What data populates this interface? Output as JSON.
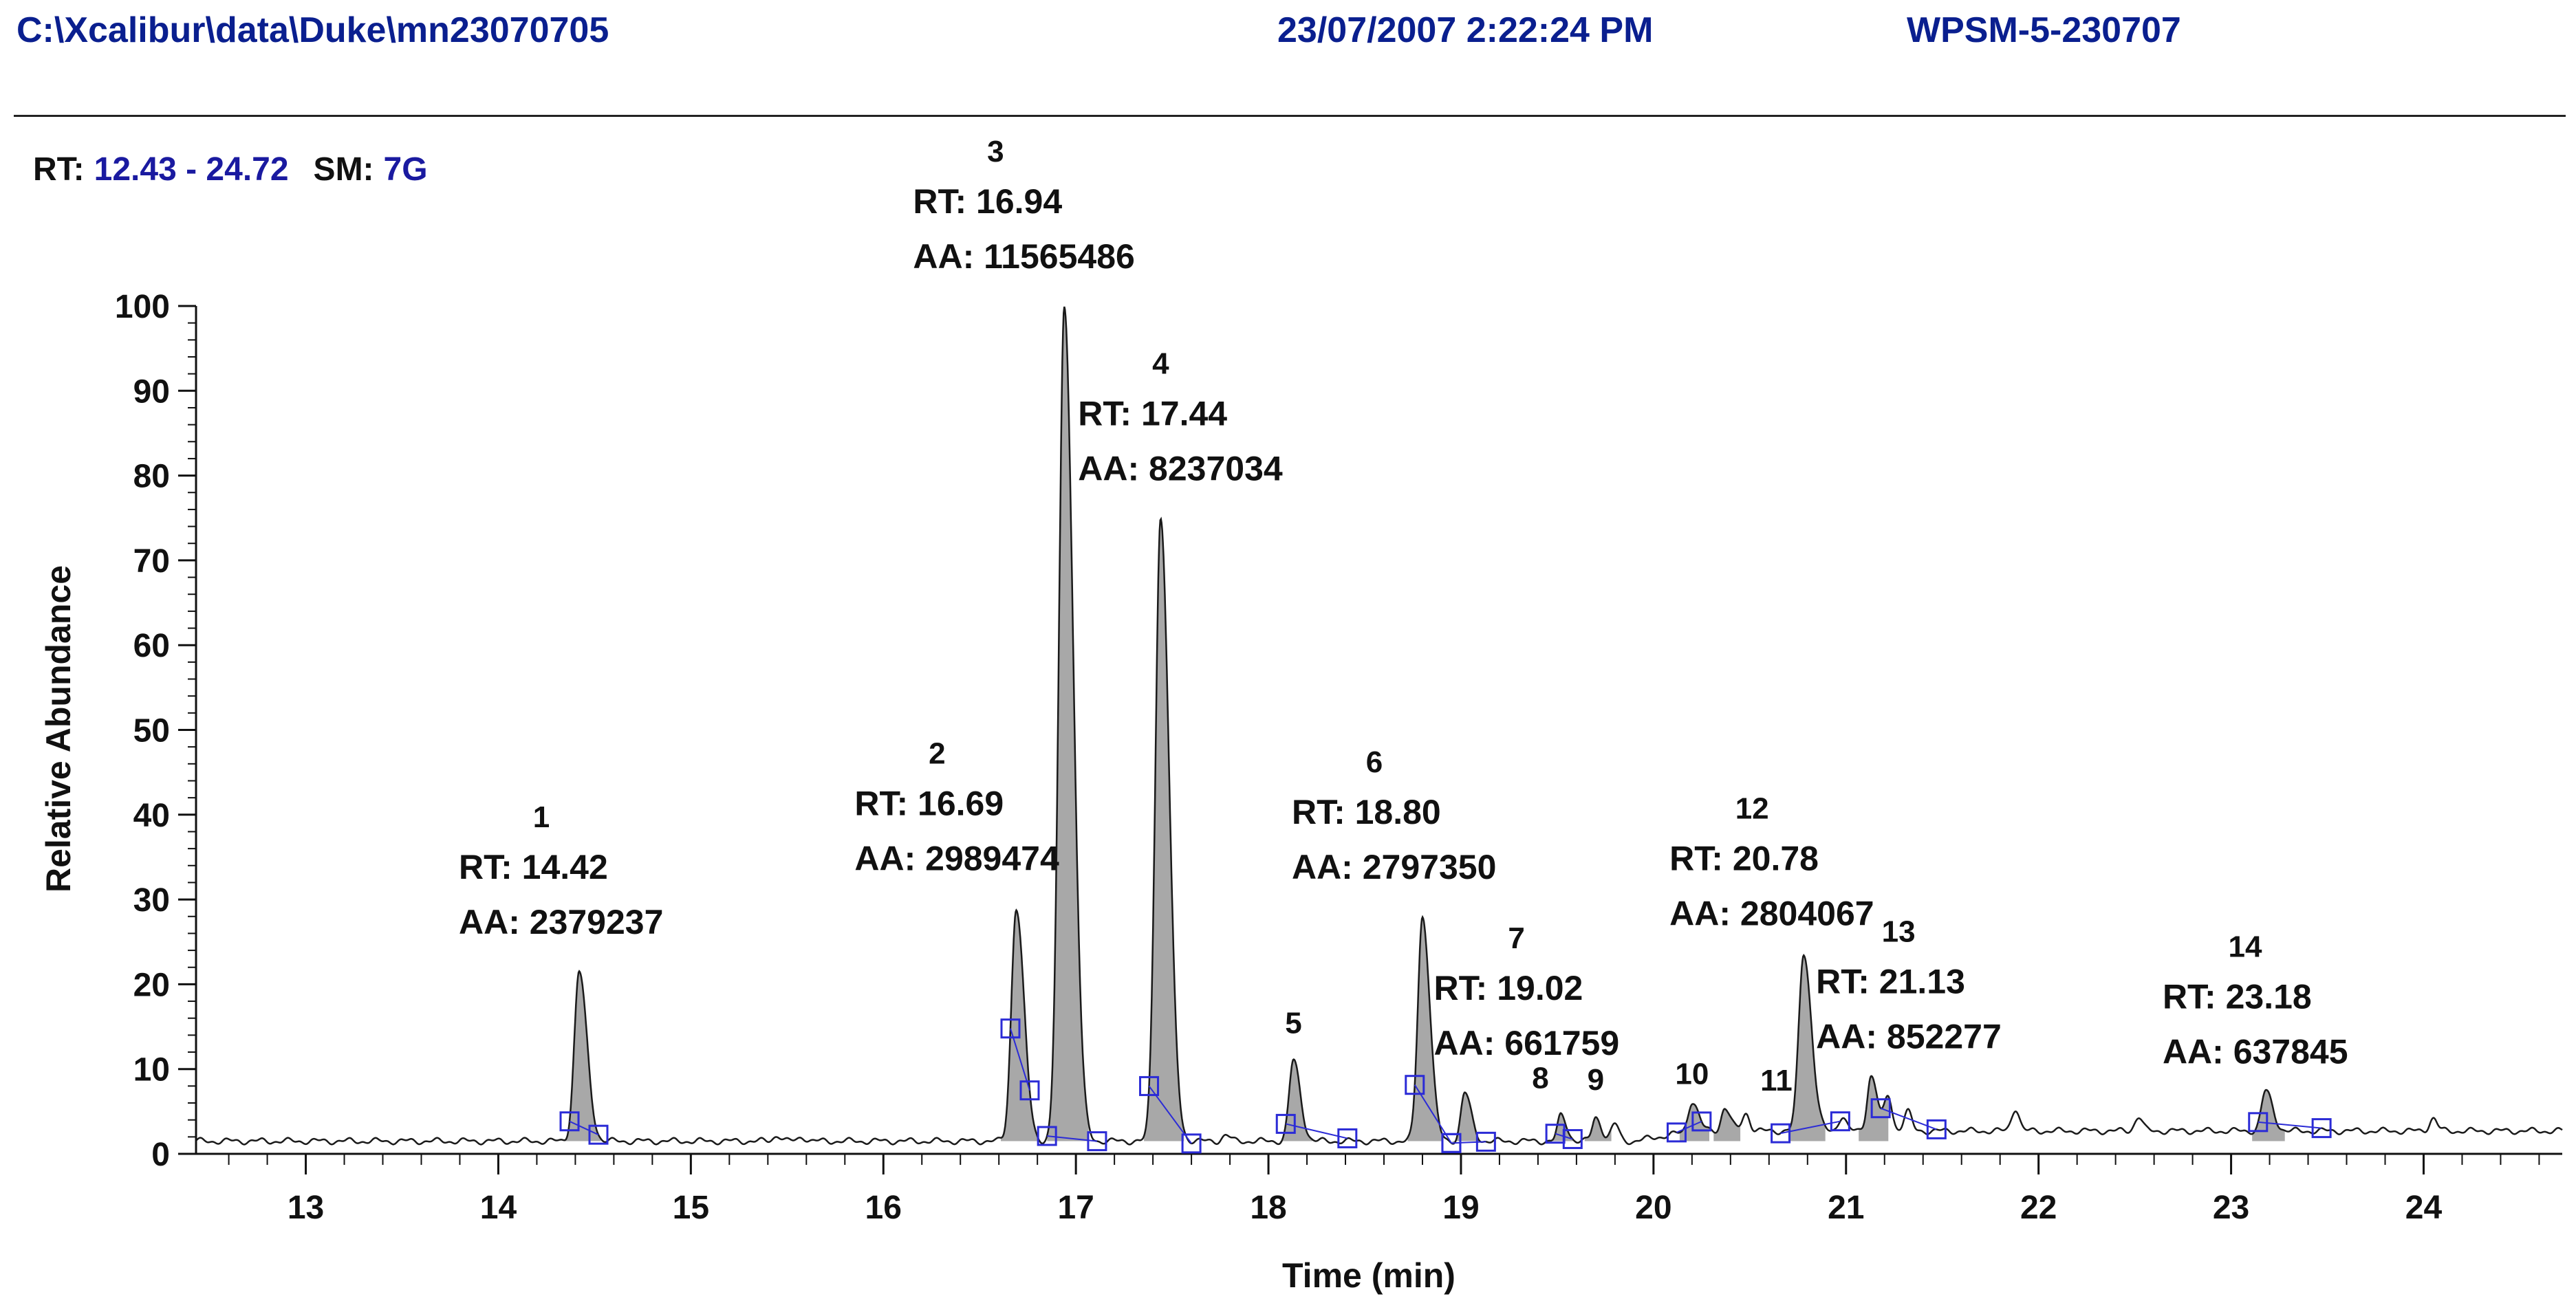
{
  "header": {
    "file_path": "C:\\Xcalibur\\data\\Duke\\mn23070705",
    "datetime": "23/07/2007 2:22:24 PM",
    "sample_id": "WPSM-5-230707"
  },
  "range_info": {
    "rt_label": "RT:",
    "rt_value": "12.43 - 24.72",
    "sm_label": "SM:",
    "sm_value": "7G"
  },
  "colors": {
    "header_text": "#0a1f8f",
    "range_value": "#1a1aa0",
    "peak_fill": "#a8a8a8",
    "trace": "#1a1a1a",
    "baseline_marker": "#2b2bd6"
  },
  "chart_data": {
    "type": "line",
    "title": "",
    "xlabel": "Time (min)",
    "ylabel": "Relative Abundance",
    "xlim": [
      12.43,
      24.72
    ],
    "ylim": [
      0,
      100
    ],
    "x_ticks": [
      13,
      14,
      15,
      16,
      17,
      18,
      19,
      20,
      21,
      22,
      23,
      24
    ],
    "y_ticks": [
      0,
      10,
      20,
      30,
      40,
      50,
      60,
      70,
      80,
      90,
      100
    ],
    "baseline": 1.5,
    "grid": false,
    "peaks": [
      {
        "number": "1",
        "rt": 14.42,
        "height": 21.5,
        "width": 0.025,
        "rt_label": "RT: 14.42",
        "aa_label": "AA: 2379237",
        "bounds": [
          14.37,
          14.52
        ]
      },
      {
        "number": "2",
        "rt": 16.69,
        "height": 29,
        "width": 0.025,
        "rt_label": "RT: 16.69",
        "aa_label": "AA: 2989474",
        "bounds": [
          16.66,
          16.76
        ]
      },
      {
        "number": "3",
        "rt": 16.94,
        "height": 100,
        "width": 0.028,
        "rt_label": "RT: 16.94",
        "aa_label": "AA: 11565486",
        "bounds": [
          16.85,
          17.11
        ]
      },
      {
        "number": "4",
        "rt": 17.44,
        "height": 75,
        "width": 0.027,
        "rt_label": "RT: 17.44",
        "aa_label": "AA: 8237034",
        "bounds": [
          17.38,
          17.6
        ]
      },
      {
        "number": "5",
        "rt": 18.13,
        "height": 11,
        "width": 0.022,
        "rt_label": "",
        "aa_label": "",
        "bounds": [
          18.09,
          18.41
        ]
      },
      {
        "number": "6",
        "rt": 18.8,
        "height": 28,
        "width": 0.024,
        "rt_label": "RT: 18.80",
        "aa_label": "AA: 2797350",
        "bounds": [
          18.76,
          18.95
        ]
      },
      {
        "number": "7",
        "rt": 19.02,
        "height": 7.2,
        "width": 0.02,
        "rt_label": "RT: 19.02",
        "aa_label": "AA: 661759",
        "bounds": [
          18.95,
          19.13
        ]
      },
      {
        "number": "8",
        "rt": 19.52,
        "height": 4.5,
        "width": 0.018,
        "rt_label": "",
        "aa_label": "",
        "bounds": [
          19.49,
          19.58
        ]
      },
      {
        "number": "9",
        "rt": 19.7,
        "height": 4.3,
        "width": 0.018,
        "rt_label": "",
        "aa_label": "",
        "bounds": []
      },
      {
        "number": "10",
        "rt": 20.2,
        "height": 5,
        "width": 0.02,
        "rt_label": "",
        "aa_label": "",
        "bounds": [
          20.12,
          20.25
        ]
      },
      {
        "number": "11",
        "rt": 20.37,
        "height": 4.2,
        "width": 0.018,
        "rt_label": "",
        "aa_label": "",
        "bounds": []
      },
      {
        "number": "12",
        "rt": 20.78,
        "height": 22.5,
        "width": 0.025,
        "rt_label": "RT: 20.78",
        "aa_label": "AA: 2804067",
        "bounds": [
          20.66,
          20.97
        ]
      },
      {
        "number": "13",
        "rt": 21.13,
        "height": 8,
        "width": 0.02,
        "rt_label": "RT: 21.13",
        "aa_label": "AA: 852277",
        "bounds": [
          21.18,
          21.47
        ]
      },
      {
        "number": "14",
        "rt": 23.18,
        "height": 6.2,
        "width": 0.022,
        "rt_label": "RT: 23.18",
        "aa_label": "AA: 637845",
        "bounds": [
          23.14,
          23.47
        ]
      }
    ],
    "minor_peaks": [
      {
        "rt": 15.45,
        "height": 2.2
      },
      {
        "rt": 15.58,
        "height": 2.0
      },
      {
        "rt": 17.78,
        "height": 2.2
      },
      {
        "rt": 19.8,
        "height": 3.5
      },
      {
        "rt": 20.48,
        "height": 3.6
      },
      {
        "rt": 20.98,
        "height": 3.2
      },
      {
        "rt": 21.22,
        "height": 5.5
      },
      {
        "rt": 21.32,
        "height": 3.8
      },
      {
        "rt": 21.88,
        "height": 4.2
      },
      {
        "rt": 22.52,
        "height": 3.2
      },
      {
        "rt": 24.05,
        "height": 3.0
      }
    ]
  }
}
